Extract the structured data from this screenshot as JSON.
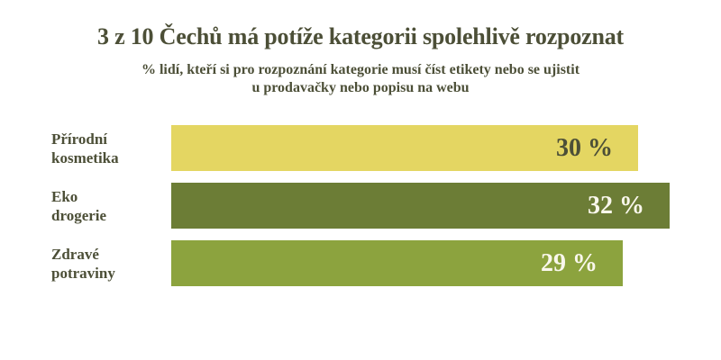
{
  "chart_data": {
    "type": "bar",
    "orientation": "horizontal",
    "title": "3 z 10 Čechů má potíže kategorii spolehlivě rozpoznat",
    "subtitle_line1": "% lidí, kteří si pro rozpoznání kategorie musí číst etikety nebo se ujistit",
    "subtitle_line2": "u prodavačky nebo popisu na webu",
    "categories": [
      "Přírodní kosmetika",
      "Eko drogerie",
      "Zdravé potraviny"
    ],
    "values": [
      30,
      32,
      29
    ],
    "xlim": [
      0,
      32
    ],
    "grid": false,
    "legend": false,
    "axis_labels_visible": false,
    "rows": [
      {
        "label_line1": "Přírodní",
        "label_line2": "kosmetika",
        "value": 30,
        "value_label": "30 %",
        "bar_color": "#e4d662",
        "value_text_color": "#4c4f37"
      },
      {
        "label_line1": "Eko",
        "label_line2": "drogerie",
        "value": 32,
        "value_label": "32 %",
        "bar_color": "#6c7d36",
        "value_text_color": "#f9f7ec"
      },
      {
        "label_line1": "Zdravé",
        "label_line2": "potraviny",
        "value": 29,
        "value_label": "29 %",
        "bar_color": "#8ca33e",
        "value_text_color": "#f9f7ec"
      }
    ],
    "colors": {
      "text": "#4c4f37",
      "background": "#ffffff"
    }
  }
}
